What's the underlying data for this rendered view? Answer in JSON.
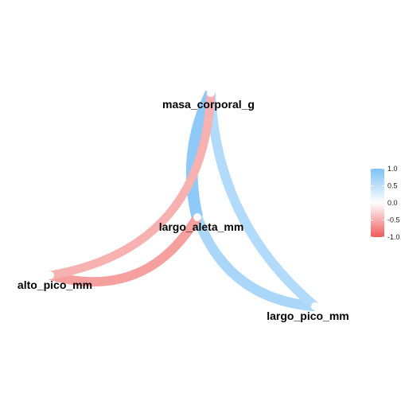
{
  "chart_data": {
    "type": "network",
    "nodes": [
      "masa_corporal_g",
      "largo_aleta_mm",
      "alto_pico_mm",
      "largo_pico_mm"
    ],
    "edges": [
      {
        "from": "masa_corporal_g",
        "to": "largo_aleta_mm",
        "correlation": 0.87
      },
      {
        "from": "largo_aleta_mm",
        "to": "largo_pico_mm",
        "correlation": 0.66
      },
      {
        "from": "masa_corporal_g",
        "to": "largo_pico_mm",
        "correlation": 0.6
      },
      {
        "from": "alto_pico_mm",
        "to": "largo_aleta_mm",
        "correlation": -0.58
      },
      {
        "from": "alto_pico_mm",
        "to": "masa_corporal_g",
        "correlation": -0.47
      }
    ],
    "legend": {
      "ticks": [
        "1.0",
        "0.5",
        "0.0",
        "-0.5",
        "-1.0"
      ],
      "tick_values": [
        1.0,
        0.5,
        0.0,
        -0.5,
        -1.0
      ],
      "range": [
        -1,
        1
      ],
      "colors": {
        "negative": "#f05a5a",
        "zero": "#ffffff",
        "positive": "#7ec1f7"
      },
      "placement": "right"
    }
  }
}
